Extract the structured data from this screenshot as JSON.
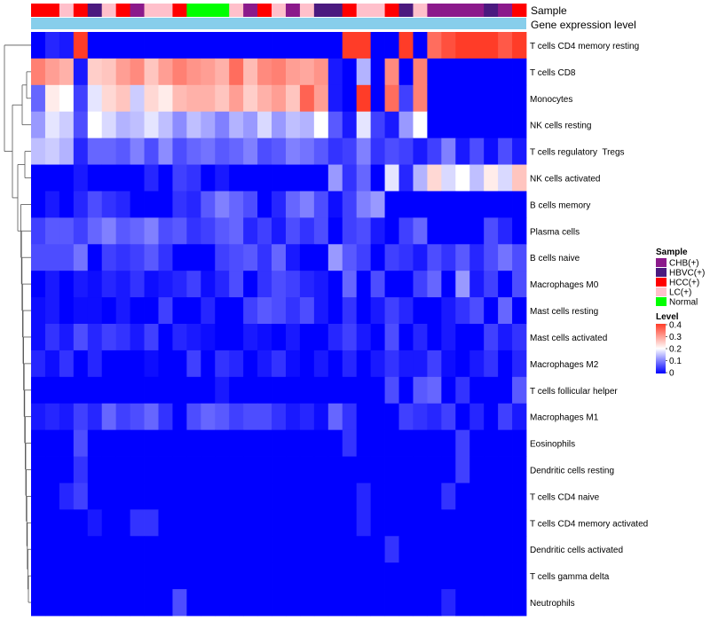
{
  "chart_data": {
    "type": "heatmap",
    "title": "",
    "annotation_track_labels": {
      "sample": "Sample",
      "gene_expression": "Gene expression level"
    },
    "colors": {
      "CHB(+)": "#8B1A8B",
      "HBVC(+)": "#4B1A7F",
      "HCC(+)": "#FF0000",
      "LC(+)": "#FFC0CB",
      "Normal": "#00FF00",
      "gene_expression_bar": "#87CEEB",
      "scale_low": "#0000FF",
      "scale_mid": "#FFFFFF",
      "scale_high": "#FF3C28"
    },
    "sample_groups": [
      "HCC(+)",
      "HCC(+)",
      "LC(+)",
      "HCC(+)",
      "HBVC(+)",
      "LC(+)",
      "HCC(+)",
      "CHB(+)",
      "LC(+)",
      "LC(+)",
      "HCC(+)",
      "Normal",
      "Normal",
      "Normal",
      "LC(+)",
      "CHB(+)",
      "HCC(+)",
      "LC(+)",
      "CHB(+)",
      "LC(+)",
      "HBVC(+)",
      "HBVC(+)",
      "HCC(+)",
      "LC(+)",
      "LC(+)",
      "HCC(+)",
      "HBVC(+)",
      "LC(+)",
      "CHB(+)",
      "CHB(+)",
      "CHB(+)",
      "CHB(+)",
      "HBVC(+)",
      "CHB(+)",
      "HCC(+)"
    ],
    "rows": [
      "T cells CD4 memory resting",
      "T cells CD8",
      "Monocytes",
      "NK cells resting",
      "T cells regulatory  Tregs",
      "NK cells activated",
      "B cells memory",
      "Plasma cells",
      "B cells naive",
      "Macrophages M0",
      "Mast cells resting",
      "Mast cells activated",
      "Macrophages M2",
      "T cells follicular helper",
      "Macrophages M1",
      "Eosinophils",
      "Dendritic cells resting",
      "T cells CD4 naive",
      "T cells CD4 memory activated",
      "Dendritic cells activated",
      "T cells gamma delta",
      "Neutrophils"
    ],
    "values": [
      [
        0.0,
        0.03,
        0.02,
        0.4,
        0.0,
        0.0,
        0.0,
        0.0,
        0.0,
        0.0,
        0.0,
        0.0,
        0.0,
        0.0,
        0.0,
        0.0,
        0.0,
        0.0,
        0.0,
        0.0,
        0.0,
        0.0,
        0.4,
        0.4,
        0.0,
        0.0,
        0.4,
        0.0,
        0.35,
        0.38,
        0.4,
        0.4,
        0.4,
        0.37,
        0.4
      ],
      [
        0.33,
        0.3,
        0.28,
        0.02,
        0.25,
        0.26,
        0.3,
        0.32,
        0.26,
        0.3,
        0.33,
        0.31,
        0.3,
        0.28,
        0.35,
        0.27,
        0.32,
        0.33,
        0.3,
        0.29,
        0.31,
        0.02,
        0.0,
        0.14,
        0.0,
        0.32,
        0.0,
        0.33,
        0.0,
        0.0,
        0.0,
        0.0,
        0.0,
        0.0,
        0.0
      ],
      [
        0.08,
        0.22,
        0.2,
        0.05,
        0.18,
        0.24,
        0.26,
        0.16,
        0.24,
        0.22,
        0.27,
        0.28,
        0.28,
        0.26,
        0.3,
        0.25,
        0.28,
        0.3,
        0.26,
        0.36,
        0.3,
        0.02,
        0.0,
        0.4,
        0.0,
        0.35,
        0.05,
        0.33,
        0.0,
        0.0,
        0.0,
        0.0,
        0.0,
        0.0,
        0.0
      ],
      [
        0.12,
        0.18,
        0.16,
        0.06,
        0.2,
        0.17,
        0.14,
        0.15,
        0.18,
        0.15,
        0.11,
        0.15,
        0.13,
        0.1,
        0.14,
        0.12,
        0.17,
        0.12,
        0.15,
        0.14,
        0.2,
        0.07,
        0.02,
        0.18,
        0.05,
        0.02,
        0.12,
        0.2,
        0.0,
        0.0,
        0.0,
        0.0,
        0.0,
        0.0,
        0.0
      ],
      [
        0.15,
        0.16,
        0.14,
        0.03,
        0.08,
        0.08,
        0.07,
        0.1,
        0.06,
        0.11,
        0.06,
        0.08,
        0.09,
        0.07,
        0.08,
        0.1,
        0.06,
        0.07,
        0.1,
        0.09,
        0.07,
        0.04,
        0.05,
        0.1,
        0.04,
        0.06,
        0.05,
        0.02,
        0.05,
        0.1,
        0.02,
        0.06,
        0.01,
        0.06,
        0.02
      ],
      [
        0.0,
        0.0,
        0.0,
        0.02,
        0.0,
        0.0,
        0.0,
        0.0,
        0.03,
        0.0,
        0.05,
        0.04,
        0.0,
        0.02,
        0.0,
        0.0,
        0.0,
        0.0,
        0.0,
        0.0,
        0.0,
        0.12,
        0.04,
        0.08,
        0.0,
        0.18,
        0.03,
        0.14,
        0.24,
        0.17,
        0.2,
        0.15,
        0.22,
        0.17,
        0.26
      ],
      [
        0.0,
        0.02,
        0.0,
        0.03,
        0.06,
        0.04,
        0.03,
        0.0,
        0.0,
        0.0,
        0.04,
        0.03,
        0.07,
        0.1,
        0.08,
        0.06,
        0.0,
        0.03,
        0.08,
        0.1,
        0.06,
        0.01,
        0.05,
        0.1,
        0.12,
        0.0,
        0.0,
        0.0,
        0.0,
        0.0,
        0.0,
        0.0,
        0.0,
        0.0,
        0.0
      ],
      [
        0.05,
        0.07,
        0.07,
        0.05,
        0.08,
        0.1,
        0.07,
        0.08,
        0.1,
        0.06,
        0.07,
        0.04,
        0.05,
        0.07,
        0.08,
        0.03,
        0.05,
        0.02,
        0.06,
        0.04,
        0.06,
        0.0,
        0.05,
        0.06,
        0.02,
        0.0,
        0.05,
        0.08,
        0.0,
        0.0,
        0.0,
        0.0,
        0.06,
        0.03,
        0.0
      ],
      [
        0.06,
        0.06,
        0.06,
        0.09,
        0.0,
        0.05,
        0.04,
        0.05,
        0.07,
        0.04,
        0.0,
        0.0,
        0.0,
        0.05,
        0.06,
        0.07,
        0.04,
        0.08,
        0.02,
        0.0,
        0.0,
        0.12,
        0.07,
        0.05,
        0.0,
        0.05,
        0.04,
        0.02,
        0.06,
        0.04,
        0.07,
        0.03,
        0.06,
        0.09,
        0.06
      ],
      [
        0.0,
        0.02,
        0.0,
        0.02,
        0.01,
        0.03,
        0.02,
        0.04,
        0.01,
        0.02,
        0.03,
        0.05,
        0.01,
        0.03,
        0.06,
        0.0,
        0.04,
        0.06,
        0.05,
        0.03,
        0.02,
        0.0,
        0.08,
        0.0,
        0.06,
        0.0,
        0.0,
        0.05,
        0.08,
        0.0,
        0.12,
        0.02,
        0.05,
        0.0,
        0.06
      ],
      [
        0.01,
        0.02,
        0.0,
        0.01,
        0.01,
        0.0,
        0.02,
        0.0,
        0.0,
        0.05,
        0.0,
        0.0,
        0.03,
        0.0,
        0.0,
        0.05,
        0.07,
        0.06,
        0.04,
        0.06,
        0.02,
        0.0,
        0.04,
        0.0,
        0.02,
        0.05,
        0.03,
        0.0,
        0.0,
        0.02,
        0.04,
        0.06,
        0.0,
        0.08,
        0.0
      ],
      [
        0.01,
        0.04,
        0.02,
        0.06,
        0.03,
        0.05,
        0.04,
        0.02,
        0.05,
        0.0,
        0.03,
        0.02,
        0.01,
        0.0,
        0.0,
        0.02,
        0.01,
        0.0,
        0.02,
        0.0,
        0.0,
        0.03,
        0.05,
        0.02,
        0.0,
        0.06,
        0.0,
        0.03,
        0.0,
        0.02,
        0.0,
        0.0,
        0.05,
        0.02,
        0.04
      ],
      [
        0.03,
        0.01,
        0.04,
        0.0,
        0.03,
        0.0,
        0.0,
        0.0,
        0.01,
        0.0,
        0.0,
        0.05,
        0.0,
        0.04,
        0.03,
        0.0,
        0.02,
        0.04,
        0.01,
        0.0,
        0.02,
        0.0,
        0.03,
        0.0,
        0.02,
        0.04,
        0.02,
        0.02,
        0.05,
        0.01,
        0.0,
        0.02,
        0.04,
        0.0,
        0.03
      ],
      [
        0.0,
        0.0,
        0.0,
        0.0,
        0.0,
        0.0,
        0.0,
        0.0,
        0.0,
        0.0,
        0.0,
        0.0,
        0.0,
        0.02,
        0.0,
        0.0,
        0.0,
        0.0,
        0.0,
        0.0,
        0.0,
        0.0,
        0.0,
        0.0,
        0.0,
        0.06,
        0.0,
        0.07,
        0.08,
        0.0,
        0.04,
        0.0,
        0.0,
        0.0,
        0.07
      ],
      [
        0.02,
        0.03,
        0.02,
        0.05,
        0.03,
        0.08,
        0.05,
        0.06,
        0.08,
        0.04,
        0.0,
        0.06,
        0.08,
        0.07,
        0.05,
        0.06,
        0.06,
        0.04,
        0.02,
        0.03,
        0.01,
        0.08,
        0.04,
        0.0,
        0.0,
        0.0,
        0.05,
        0.04,
        0.03,
        0.05,
        0.0,
        0.03,
        0.0,
        0.05,
        0.02
      ],
      [
        0.0,
        0.0,
        0.0,
        0.06,
        0.0,
        0.0,
        0.0,
        0.0,
        0.0,
        0.0,
        0.0,
        0.0,
        0.0,
        0.0,
        0.0,
        0.0,
        0.0,
        0.0,
        0.0,
        0.0,
        0.0,
        0.0,
        0.04,
        0.0,
        0.0,
        0.0,
        0.0,
        0.0,
        0.0,
        0.0,
        0.05,
        0.0,
        0.0,
        0.0,
        0.0
      ],
      [
        0.0,
        0.0,
        0.0,
        0.04,
        0.0,
        0.0,
        0.0,
        0.0,
        0.0,
        0.0,
        0.0,
        0.0,
        0.0,
        0.0,
        0.0,
        0.0,
        0.0,
        0.0,
        0.0,
        0.0,
        0.0,
        0.0,
        0.0,
        0.0,
        0.0,
        0.0,
        0.0,
        0.0,
        0.0,
        0.0,
        0.05,
        0.0,
        0.0,
        0.0,
        0.0
      ],
      [
        0.0,
        0.0,
        0.03,
        0.05,
        0.0,
        0.0,
        0.0,
        0.0,
        0.0,
        0.0,
        0.0,
        0.0,
        0.0,
        0.0,
        0.0,
        0.0,
        0.0,
        0.0,
        0.0,
        0.0,
        0.0,
        0.0,
        0.0,
        0.03,
        0.0,
        0.0,
        0.0,
        0.0,
        0.0,
        0.04,
        0.0,
        0.0,
        0.0,
        0.0,
        0.0
      ],
      [
        0.0,
        0.0,
        0.0,
        0.0,
        0.02,
        0.0,
        0.0,
        0.04,
        0.04,
        0.0,
        0.0,
        0.0,
        0.0,
        0.0,
        0.0,
        0.0,
        0.0,
        0.0,
        0.0,
        0.0,
        0.0,
        0.0,
        0.0,
        0.03,
        0.0,
        0.0,
        0.0,
        0.0,
        0.0,
        0.0,
        0.0,
        0.0,
        0.0,
        0.0,
        0.0
      ],
      [
        0.0,
        0.0,
        0.0,
        0.0,
        0.0,
        0.0,
        0.0,
        0.0,
        0.0,
        0.0,
        0.0,
        0.0,
        0.0,
        0.0,
        0.0,
        0.0,
        0.0,
        0.0,
        0.0,
        0.0,
        0.0,
        0.0,
        0.0,
        0.0,
        0.0,
        0.04,
        0.0,
        0.0,
        0.0,
        0.0,
        0.0,
        0.0,
        0.0,
        0.0,
        0.0
      ],
      [
        0.0,
        0.0,
        0.0,
        0.0,
        0.0,
        0.0,
        0.0,
        0.0,
        0.0,
        0.0,
        0.0,
        0.0,
        0.0,
        0.0,
        0.0,
        0.0,
        0.0,
        0.0,
        0.0,
        0.0,
        0.0,
        0.0,
        0.0,
        0.0,
        0.0,
        0.0,
        0.0,
        0.0,
        0.0,
        0.0,
        0.0,
        0.0,
        0.0,
        0.0,
        0.0
      ],
      [
        0.0,
        0.0,
        0.0,
        0.0,
        0.0,
        0.0,
        0.0,
        0.0,
        0.0,
        0.0,
        0.06,
        0.0,
        0.0,
        0.0,
        0.0,
        0.0,
        0.0,
        0.0,
        0.0,
        0.0,
        0.0,
        0.0,
        0.0,
        0.0,
        0.0,
        0.0,
        0.0,
        0.0,
        0.0,
        0.03,
        0.0,
        0.0,
        0.0,
        0.0,
        0.0
      ]
    ],
    "legend": {
      "sample": {
        "title": "Sample",
        "entries": [
          "CHB(+)",
          "HBVC(+)",
          "HCC(+)",
          "LC(+)",
          "Normal"
        ]
      },
      "level": {
        "title": "Level",
        "ticks": [
          "0.4",
          "0.3",
          "0.2",
          "0.1",
          "0"
        ],
        "range": [
          0,
          0.4
        ]
      }
    }
  }
}
